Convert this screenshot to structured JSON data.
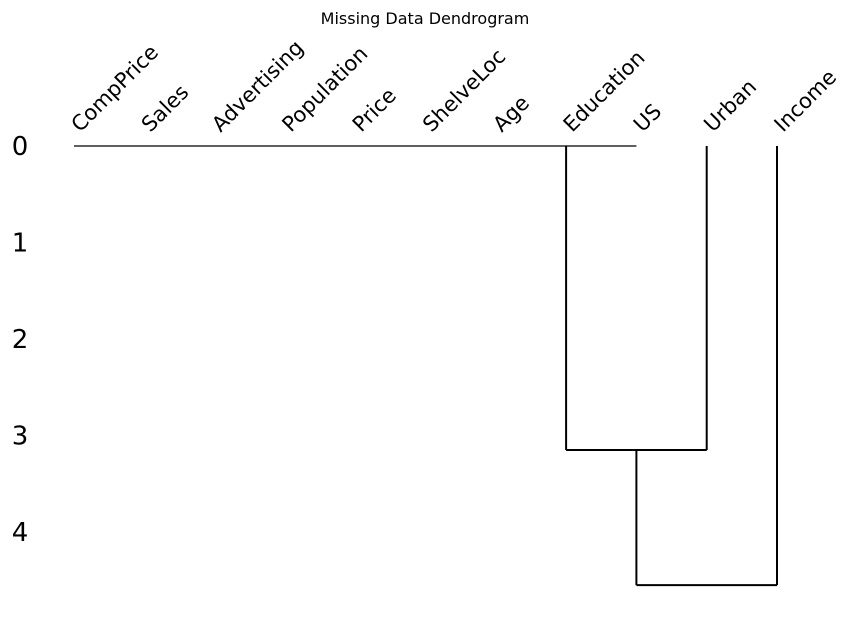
{
  "chart_data": {
    "type": "dendrogram",
    "title": "Missing Data Dendrogram",
    "leaves": [
      "CompPrice",
      "Sales",
      "Advertising",
      "Population",
      "Price",
      "ShelveLoc",
      "Age",
      "Education",
      "US",
      "Urban",
      "Income"
    ],
    "y_ticks": [
      "0",
      "1",
      "2",
      "3",
      "4"
    ],
    "ylim": [
      0,
      4.6
    ],
    "merges": [
      {
        "left": "CompPrice..Education",
        "right": "US",
        "height": 0
      },
      {
        "left": "Education",
        "right": "Urban",
        "height": 3.15
      },
      {
        "left": "Education+Urban",
        "right": "Income",
        "height": 4.55
      }
    ],
    "line_color": "#000000"
  }
}
